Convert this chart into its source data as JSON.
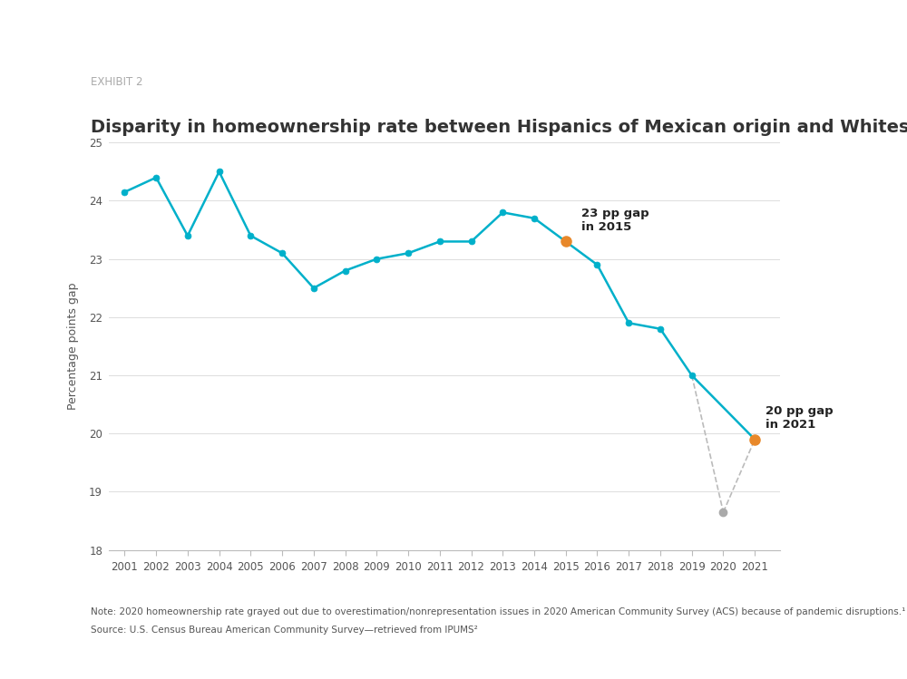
{
  "years": [
    2001,
    2002,
    2003,
    2004,
    2005,
    2006,
    2007,
    2008,
    2009,
    2010,
    2011,
    2012,
    2013,
    2014,
    2015,
    2016,
    2017,
    2018,
    2019,
    2020,
    2021
  ],
  "values": [
    24.15,
    24.4,
    23.4,
    24.5,
    23.4,
    23.1,
    22.5,
    22.8,
    23.0,
    23.1,
    23.3,
    23.3,
    23.8,
    23.7,
    23.3,
    22.9,
    21.9,
    21.8,
    21.0,
    18.65,
    19.9
  ],
  "line_color": "#00B0CA",
  "highlight_color": "#E8882A",
  "gray_color": "#AAAAAA",
  "dashed_color": "#BBBBBB",
  "title": "Disparity in homeownership rate between Hispanics of Mexican origin and Whites",
  "exhibit_label": "EXHIBIT 2",
  "ylabel": "Percentage points gap",
  "ylim_min": 18,
  "ylim_max": 25,
  "yticks": [
    18,
    19,
    20,
    21,
    22,
    23,
    24,
    25
  ],
  "annotation_2015_text": "23 pp gap\nin 2015",
  "annotation_2021_text": "20 pp gap\nin 2021",
  "note_text": "Note: 2020 homeownership rate grayed out due to overestimation/nonrepresentation issues in 2020 American Community Survey (ACS) because of pandemic disruptions.¹",
  "source_text": "Source: U.S. Census Bureau American Community Survey—retrieved from IPUMS²",
  "background_color": "#FFFFFF",
  "marker_size": 5,
  "highlight_marker_size": 8
}
